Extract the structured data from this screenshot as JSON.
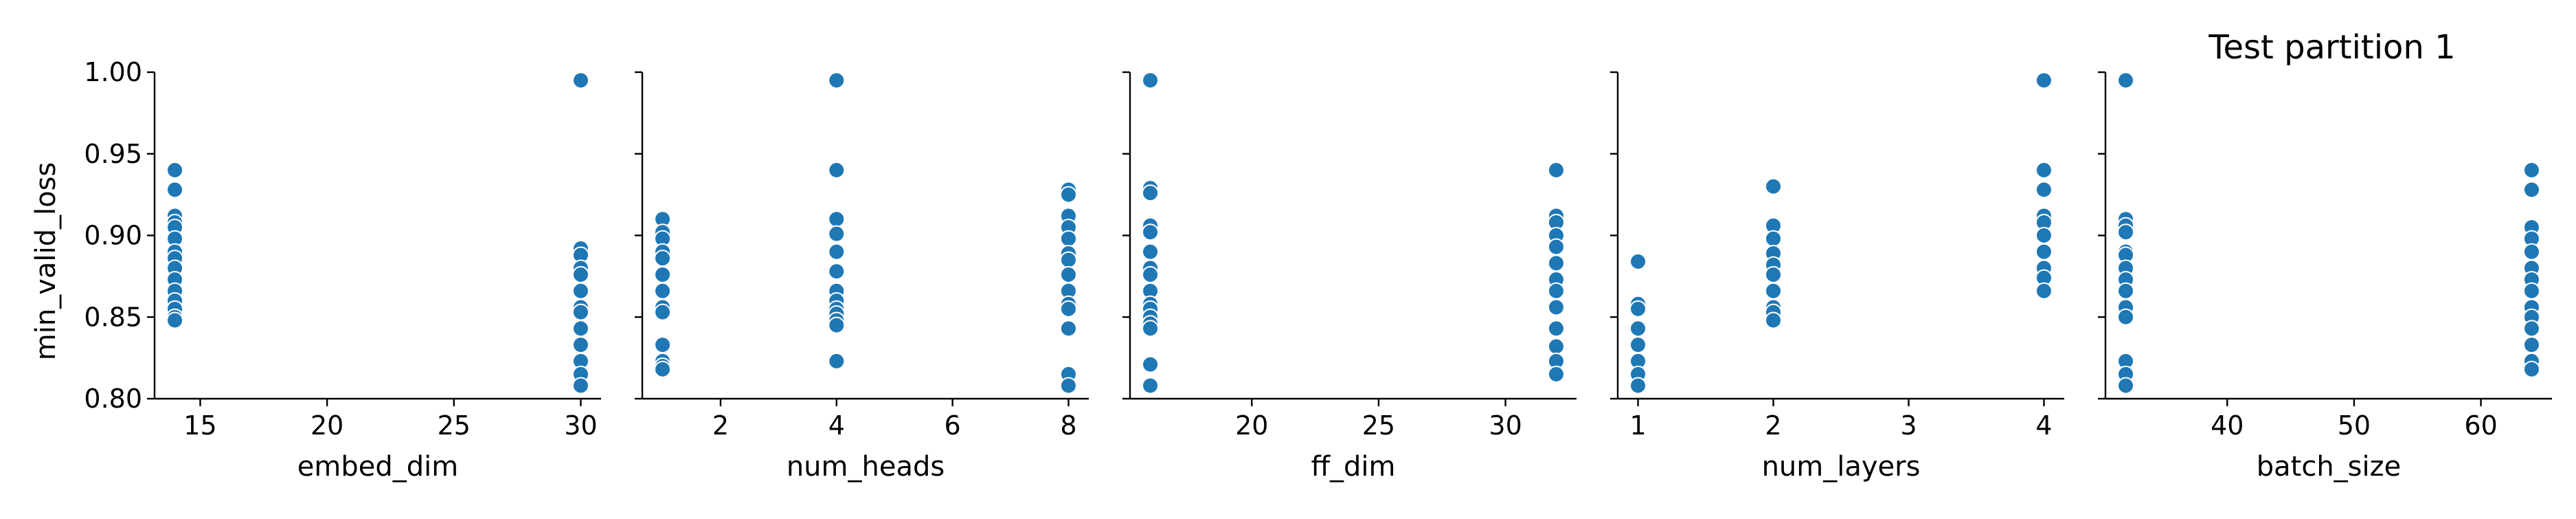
{
  "title": "Test partition 1",
  "ylabel": "min_valid_loss",
  "chart_data": {
    "type": "scatter",
    "title": "Test partition 1",
    "ylabel": "min_valid_loss",
    "ylim": [
      0.8,
      1.0
    ],
    "yticks": [
      0.8,
      0.85,
      0.9,
      0.95,
      1.0
    ],
    "yticklabels": [
      "0.80",
      "0.85",
      "0.90",
      "0.95",
      "1.00"
    ],
    "grid": false,
    "marker_color": "#1f77b4",
    "panels": [
      {
        "xlabel": "embed_dim",
        "xlim": [
          13.2,
          30.8
        ],
        "xticks": [
          15,
          20,
          25,
          30
        ],
        "xticklabels": [
          "15",
          "20",
          "25",
          "30"
        ],
        "x": [
          14,
          14,
          14,
          14,
          14,
          14,
          14,
          14,
          14,
          14,
          14,
          14,
          14,
          14,
          14,
          30,
          30,
          30,
          30,
          30,
          30,
          30,
          30,
          30,
          30,
          30,
          30,
          30
        ],
        "y": [
          0.94,
          0.928,
          0.912,
          0.908,
          0.905,
          0.898,
          0.89,
          0.886,
          0.88,
          0.873,
          0.866,
          0.86,
          0.855,
          0.85,
          0.848,
          0.995,
          0.892,
          0.888,
          0.88,
          0.876,
          0.866,
          0.856,
          0.853,
          0.843,
          0.833,
          0.823,
          0.815,
          0.808
        ]
      },
      {
        "xlabel": "num_heads",
        "xlim": [
          0.65,
          8.35
        ],
        "xticks": [
          2,
          4,
          6,
          8
        ],
        "xticklabels": [
          "2",
          "4",
          "6",
          "8"
        ],
        "x": [
          1,
          1,
          1,
          1,
          1,
          1,
          1,
          1,
          1,
          1,
          1,
          1,
          1,
          4,
          4,
          4,
          4,
          4,
          4,
          4,
          4,
          4,
          4,
          4,
          4,
          4,
          8,
          8,
          8,
          8,
          8,
          8,
          8,
          8,
          8,
          8,
          8,
          8,
          8,
          8
        ],
        "y": [
          0.91,
          0.902,
          0.898,
          0.89,
          0.886,
          0.876,
          0.866,
          0.856,
          0.853,
          0.833,
          0.823,
          0.82,
          0.818,
          0.995,
          0.94,
          0.91,
          0.901,
          0.89,
          0.878,
          0.866,
          0.86,
          0.855,
          0.852,
          0.848,
          0.845,
          0.823,
          0.928,
          0.925,
          0.912,
          0.905,
          0.898,
          0.889,
          0.885,
          0.876,
          0.866,
          0.858,
          0.855,
          0.843,
          0.815,
          0.808
        ]
      },
      {
        "xlabel": "ff_dim",
        "xlim": [
          15.2,
          32.8
        ],
        "xticks": [
          20,
          25,
          30
        ],
        "xticklabels": [
          "20",
          "25",
          "30"
        ],
        "x": [
          16,
          16,
          16,
          16,
          16,
          16,
          16,
          16,
          16,
          16,
          16,
          16,
          16,
          16,
          16,
          16,
          32,
          32,
          32,
          32,
          32,
          32,
          32,
          32,
          32,
          32,
          32,
          32,
          32
        ],
        "y": [
          0.995,
          0.929,
          0.926,
          0.906,
          0.902,
          0.89,
          0.88,
          0.876,
          0.866,
          0.858,
          0.855,
          0.85,
          0.846,
          0.843,
          0.821,
          0.808,
          0.94,
          0.912,
          0.908,
          0.9,
          0.893,
          0.883,
          0.873,
          0.866,
          0.856,
          0.843,
          0.832,
          0.823,
          0.815
        ]
      },
      {
        "xlabel": "num_layers",
        "xlim": [
          0.85,
          4.15
        ],
        "xticks": [
          1,
          2,
          3,
          4
        ],
        "xticklabels": [
          "1",
          "2",
          "3",
          "4"
        ],
        "x": [
          1,
          1,
          1,
          1,
          1,
          1,
          1,
          1,
          2,
          2,
          2,
          2,
          2,
          2,
          2,
          2,
          2,
          2,
          4,
          4,
          4,
          4,
          4,
          4,
          4,
          4,
          4,
          4
        ],
        "y": [
          0.884,
          0.858,
          0.855,
          0.843,
          0.833,
          0.823,
          0.815,
          0.808,
          0.93,
          0.906,
          0.898,
          0.889,
          0.882,
          0.876,
          0.866,
          0.856,
          0.853,
          0.848,
          0.995,
          0.94,
          0.928,
          0.912,
          0.908,
          0.9,
          0.89,
          0.88,
          0.874,
          0.866
        ]
      },
      {
        "xlabel": "batch_size",
        "xlim": [
          30.4,
          65.6
        ],
        "xticks": [
          40,
          50,
          60
        ],
        "xticklabels": [
          "40",
          "50",
          "60"
        ],
        "x": [
          32,
          32,
          32,
          32,
          32,
          32,
          32,
          32,
          32,
          32,
          32,
          32,
          32,
          32,
          64,
          64,
          64,
          64,
          64,
          64,
          64,
          64,
          64,
          64,
          64,
          64,
          64,
          64
        ],
        "y": [
          0.995,
          0.91,
          0.906,
          0.902,
          0.89,
          0.888,
          0.88,
          0.873,
          0.866,
          0.856,
          0.85,
          0.823,
          0.815,
          0.808,
          0.94,
          0.928,
          0.905,
          0.898,
          0.89,
          0.88,
          0.873,
          0.866,
          0.856,
          0.85,
          0.843,
          0.833,
          0.823,
          0.818
        ]
      }
    ]
  }
}
